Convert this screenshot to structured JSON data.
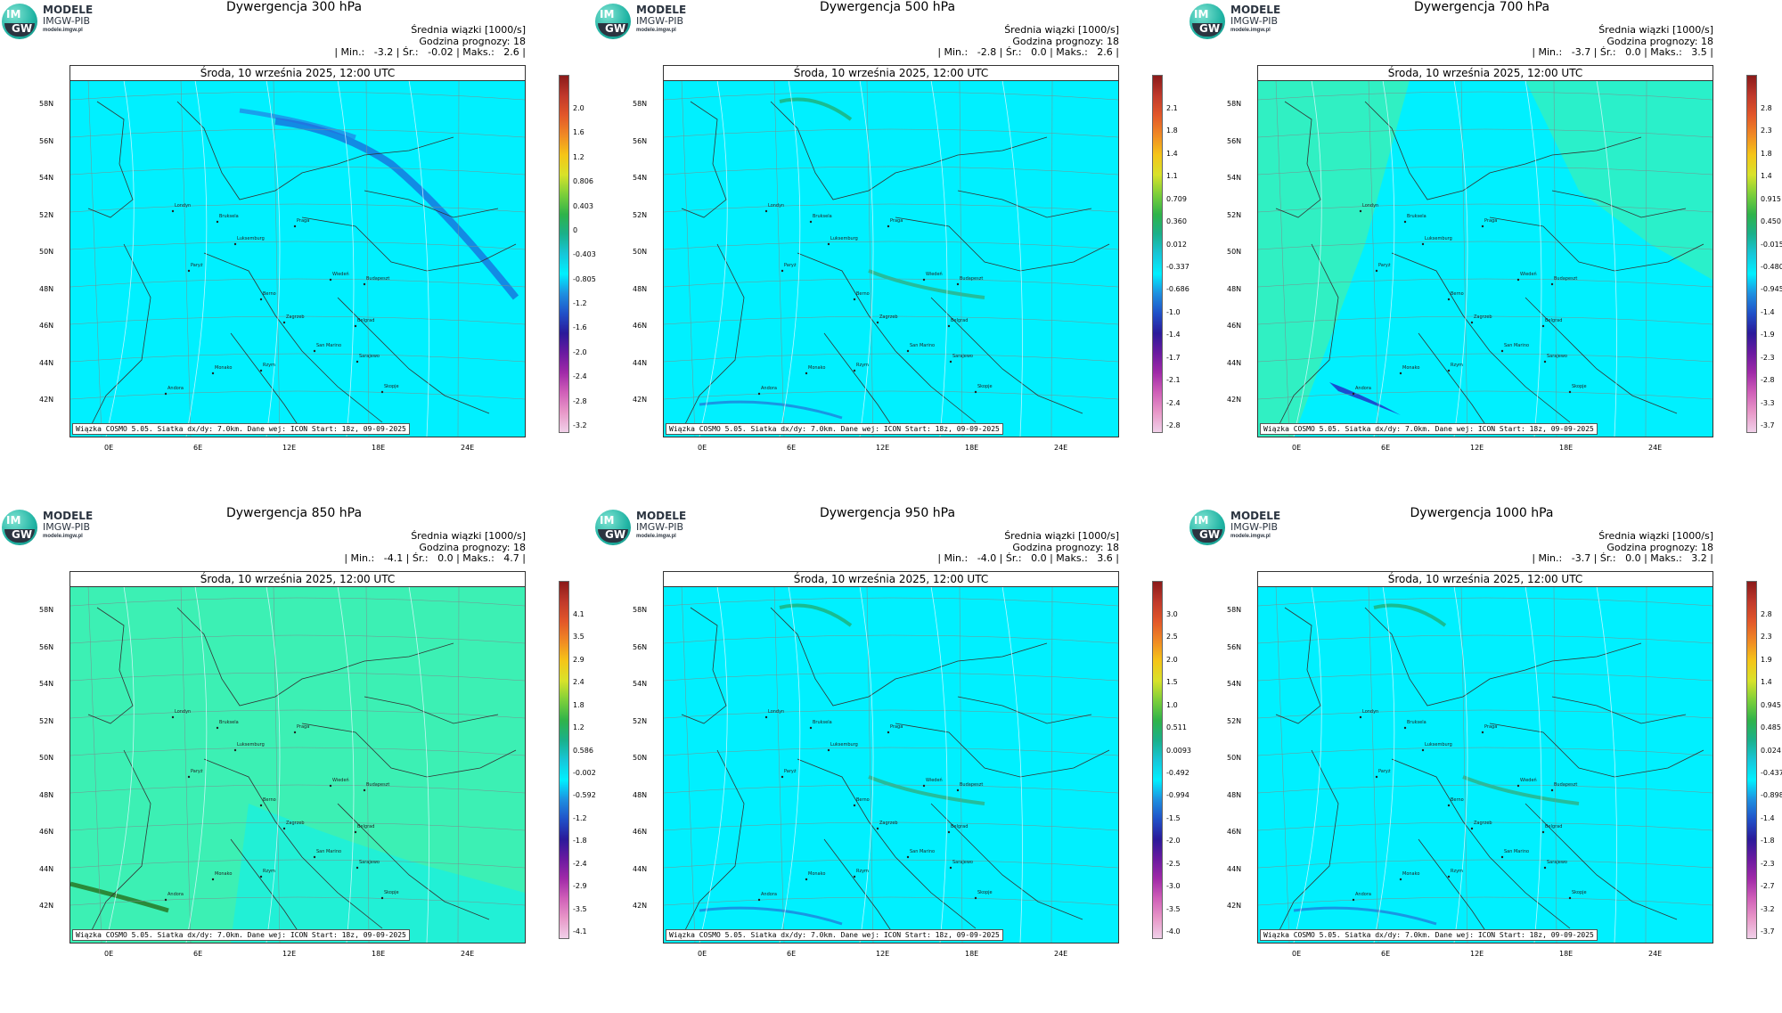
{
  "brand": {
    "line1": "MODELE",
    "line2": "IMGW-PIB",
    "line3": "modele.imgw.pl",
    "mark_top": "IM",
    "mark_bottom": "GW"
  },
  "common": {
    "date": "Środa, 10 września 2025, 12:00 UTC",
    "footnote": "Wiązka COSMO 5.05. Siatka dx/dy: 7.0km. Dane wej: ICON Start: 18z, 09-09-2025",
    "avg_label": "Średnia wiązki [1000/s]",
    "forecast_label": "Godzina prognozy: 18",
    "lat_labels": [
      "58N",
      "56N",
      "54N",
      "52N",
      "50N",
      "48N",
      "46N",
      "44N",
      "42N"
    ],
    "lon_labels": [
      "0E",
      "6E",
      "12E",
      "18E",
      "24E"
    ],
    "cities": [
      "Londyn",
      "Bruksela",
      "Paryż",
      "Luksemburg",
      "Praga",
      "Wiedeń",
      "Budapeszt",
      "Berno",
      "Zagrzeb",
      "Belgrad",
      "San Marino",
      "Sarajewo",
      "Rzym",
      "Skopje",
      "Andora",
      "Monako"
    ]
  },
  "colors": {
    "cyan_field": "#00f0ff",
    "green_field": "#3cf0b4",
    "scale_top": "#8b1a1a",
    "scale_bottom": "#f0d0e8"
  },
  "panels": [
    {
      "title": "Dywergencja 300 hPa",
      "stats": "| Min.:   -3.2 | Śr.:   -0.02 | Maks.:   2.6 |",
      "ticks": [
        "2.0",
        "1.6",
        "1.2",
        "0.806",
        "0.403",
        "0",
        "-0.403",
        "-0.805",
        "-1.2",
        "-1.6",
        "-2.0",
        "-2.4",
        "-2.8",
        "-3.2"
      ],
      "field": "cyan",
      "jet": true
    },
    {
      "title": "Dywergencja 500 hPa",
      "stats": "| Min.:   -2.8 | Śr.:   0.0 | Maks.:   2.6 |",
      "ticks": [
        "2.1",
        "1.8",
        "1.4",
        "1.1",
        "0.709",
        "0.360",
        "0.012",
        "-0.337",
        "-0.686",
        "-1.0",
        "-1.4",
        "-1.7",
        "-2.1",
        "-2.4",
        "-2.8"
      ],
      "field": "cyan",
      "jet": false
    },
    {
      "title": "Dywergencja 700 hPa",
      "stats": "| Min.:   -3.7 | Śr.:   0.0 | Maks.:   3.5 |",
      "ticks": [
        "2.8",
        "2.3",
        "1.8",
        "1.4",
        "0.915",
        "0.450",
        "-0.015",
        "-0.480",
        "-0.945",
        "-1.4",
        "-1.9",
        "-2.3",
        "-2.8",
        "-3.3",
        "-3.7"
      ],
      "field": "mixed",
      "jet": false
    },
    {
      "title": "Dywergencja 850 hPa",
      "stats": "| Min.:   -4.1 | Śr.:   0.0 | Maks.:   4.7 |",
      "ticks": [
        "4.1",
        "3.5",
        "2.9",
        "2.4",
        "1.8",
        "1.2",
        "0.586",
        "-0.002",
        "-0.592",
        "-1.2",
        "-1.8",
        "-2.4",
        "-2.9",
        "-3.5",
        "-4.1"
      ],
      "field": "green",
      "jet": false
    },
    {
      "title": "Dywergencja 950 hPa",
      "stats": "| Min.:   -4.0 | Śr.:   0.0 | Maks.:   3.6 |",
      "ticks": [
        "3.0",
        "2.5",
        "2.0",
        "1.5",
        "1.0",
        "0.511",
        "0.0093",
        "-0.492",
        "-0.994",
        "-1.5",
        "-2.0",
        "-2.5",
        "-3.0",
        "-3.5",
        "-4.0"
      ],
      "field": "cyan",
      "jet": false
    },
    {
      "title": "Dywergencja 1000 hPa",
      "stats": "| Min.:   -3.7 | Śr.:   0.0 | Maks.:   3.2 |",
      "ticks": [
        "2.8",
        "2.3",
        "1.9",
        "1.4",
        "0.945",
        "0.485",
        "0.024",
        "-0.437",
        "-0.898",
        "-1.4",
        "-1.8",
        "-2.3",
        "-2.7",
        "-3.2",
        "-3.7"
      ],
      "field": "cyan",
      "jet": false
    }
  ]
}
